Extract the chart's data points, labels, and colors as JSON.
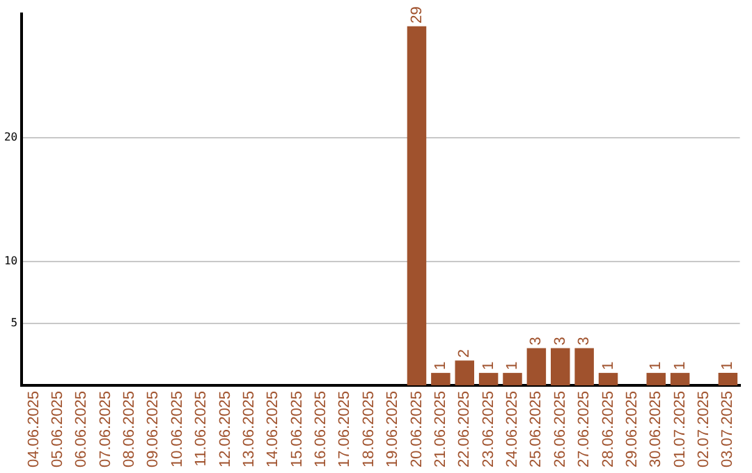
{
  "chart_data": {
    "type": "bar",
    "categories": [
      "04.06.2025",
      "05.06.2025",
      "06.06.2025",
      "07.06.2025",
      "08.06.2025",
      "09.06.2025",
      "10.06.2025",
      "11.06.2025",
      "12.06.2025",
      "13.06.2025",
      "14.06.2025",
      "15.06.2025",
      "16.06.2025",
      "17.06.2025",
      "18.06.2025",
      "19.06.2025",
      "20.06.2025",
      "21.06.2025",
      "22.06.2025",
      "23.06.2025",
      "24.06.2025",
      "25.06.2025",
      "26.06.2025",
      "27.06.2025",
      "28.06.2025",
      "29.06.2025",
      "30.06.2025",
      "01.07.2025",
      "02.07.2025",
      "03.07.2025"
    ],
    "values": [
      0,
      0,
      0,
      0,
      0,
      0,
      0,
      0,
      0,
      0,
      0,
      0,
      0,
      0,
      0,
      0,
      29,
      1,
      2,
      1,
      1,
      3,
      3,
      3,
      1,
      0,
      1,
      1,
      0,
      1
    ],
    "value_labels": [
      null,
      null,
      null,
      null,
      null,
      null,
      null,
      null,
      null,
      null,
      null,
      null,
      null,
      null,
      null,
      null,
      "29",
      "1",
      "2",
      "1",
      "1",
      "3",
      "3",
      "3",
      "1",
      null,
      "1",
      "1",
      null,
      "1"
    ],
    "color": "#a0522d",
    "ylim": [
      0,
      30
    ],
    "yticks": [
      5,
      10,
      20
    ],
    "grid": "y",
    "legend": false
  }
}
